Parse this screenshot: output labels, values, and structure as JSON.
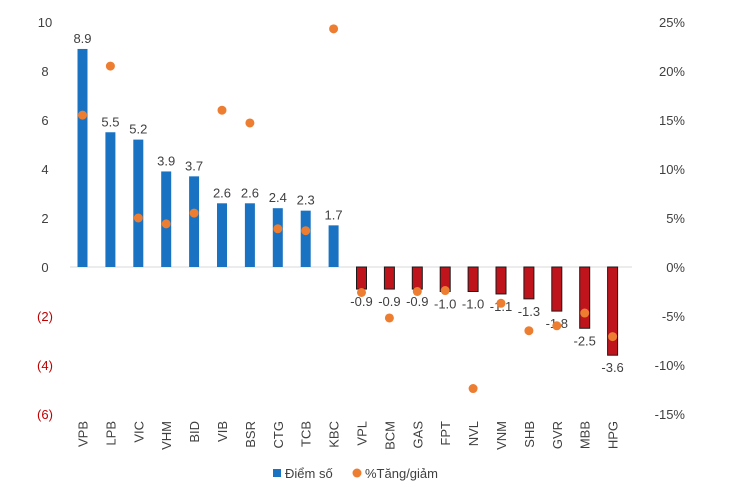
{
  "chart_data": {
    "type": "bar",
    "title": "",
    "xlabel": "",
    "ylabel": "",
    "categories": [
      "VPB",
      "LPB",
      "VIC",
      "VHM",
      "BID",
      "VIB",
      "BSR",
      "CTG",
      "TCB",
      "KBC",
      "VPL",
      "BCM",
      "GAS",
      "FPT",
      "NVL",
      "VNM",
      "SHB",
      "GVR",
      "MBB",
      "HPG"
    ],
    "series": [
      {
        "name": "Điểm số",
        "type": "bar",
        "axis": "left",
        "values": [
          8.9,
          5.5,
          5.2,
          3.9,
          3.7,
          2.6,
          2.6,
          2.4,
          2.3,
          1.7,
          -0.9,
          -0.9,
          -0.9,
          -1.0,
          -1.0,
          -1.1,
          -1.3,
          -1.8,
          -2.5,
          -3.6
        ],
        "data_labels": [
          "8.9",
          "5.5",
          "5.2",
          "3.9",
          "3.7",
          "2.6",
          "2.6",
          "2.4",
          "2.3",
          "1.7",
          "-0.9",
          "-0.9",
          "-0.9",
          "-1.0",
          "-1.0",
          "-1.1",
          "-1.3",
          "-1.8",
          "-2.5",
          "-3.6"
        ]
      },
      {
        "name": "%Tăng/giảm",
        "type": "scatter",
        "axis": "right",
        "values": [
          15.5,
          20.5,
          5.0,
          4.4,
          5.5,
          16.0,
          14.7,
          3.9,
          3.7,
          24.3,
          -2.6,
          -5.2,
          -2.5,
          -2.4,
          -12.4,
          -3.7,
          -6.5,
          -6.0,
          -4.7,
          -7.1
        ]
      }
    ],
    "left_axis": {
      "ylim": [
        -6,
        10
      ],
      "ticks": [
        10,
        8,
        6,
        4,
        2,
        0,
        -2,
        -4,
        -6
      ],
      "tick_labels": [
        "10",
        "8",
        "6",
        "4",
        "2",
        "0",
        "(2)",
        "(4)",
        "(6)"
      ]
    },
    "right_axis": {
      "ylim": [
        -15,
        25
      ],
      "ticks": [
        25,
        20,
        15,
        10,
        5,
        0,
        -5,
        -10,
        -15
      ],
      "tick_labels": [
        "25%",
        "20%",
        "15%",
        "10%",
        "5%",
        "0%",
        "-5%",
        "-10%",
        "-15%"
      ]
    },
    "grid": false,
    "legend_position": "bottom",
    "colors": {
      "positive_bar": "#1a73c2",
      "negative_bar": "#c0141d",
      "negative_bar_border": "#1a1a1a",
      "scatter": "#ed7d31",
      "negative_tick_label": "#c00000",
      "text": "#404040"
    }
  }
}
